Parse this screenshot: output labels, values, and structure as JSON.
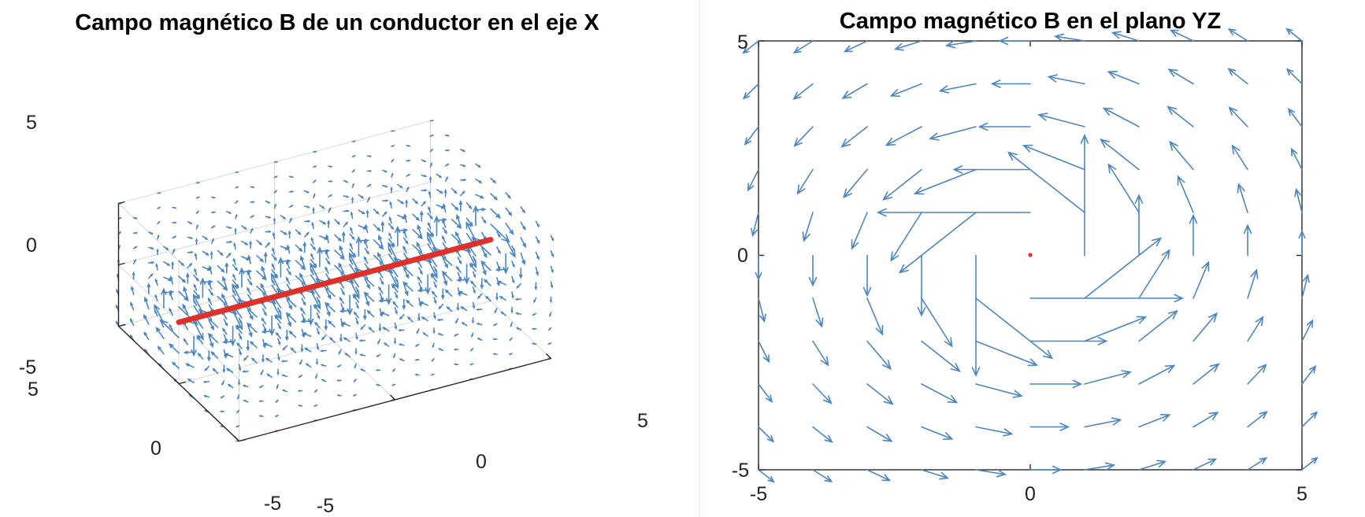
{
  "chart_data": [
    {
      "type": "quiver3d",
      "title": "Campo magnético B de un conductor en el eje X",
      "xlabel": "",
      "ylabel": "",
      "zlabel": "",
      "xlim": [
        -5,
        5
      ],
      "ylim": [
        -5,
        5
      ],
      "zlim": [
        -5,
        5
      ],
      "xticks": [
        "-5",
        "0",
        "5"
      ],
      "yticks": [
        "5",
        "0",
        "-5"
      ],
      "zticks": [
        "5",
        "0",
        "-5"
      ],
      "grid": true,
      "conductor": {
        "from": [
          -5,
          0,
          0
        ],
        "to": [
          5,
          0,
          0
        ],
        "color": "#e0302a"
      },
      "arrow_color": "#4a86c5"
    },
    {
      "type": "quiver",
      "title": "Campo magnético B en el plano YZ",
      "xlabel": "",
      "ylabel": "",
      "xlim": [
        -5,
        5
      ],
      "ylim": [
        -5,
        5
      ],
      "xticks": [
        "-5",
        "0",
        "5"
      ],
      "yticks": [
        "5",
        "0",
        "-5"
      ],
      "grid": false,
      "field": "B = (-z, y) / r^2, circulating counter-clockwise around origin",
      "grid_points": [
        -5,
        -4,
        -3,
        -2,
        -1,
        0,
        1,
        2,
        3,
        4,
        5
      ],
      "source_point": [
        0,
        0
      ],
      "arrow_color": "#4a86c5",
      "source_color": "#e0302a"
    }
  ]
}
